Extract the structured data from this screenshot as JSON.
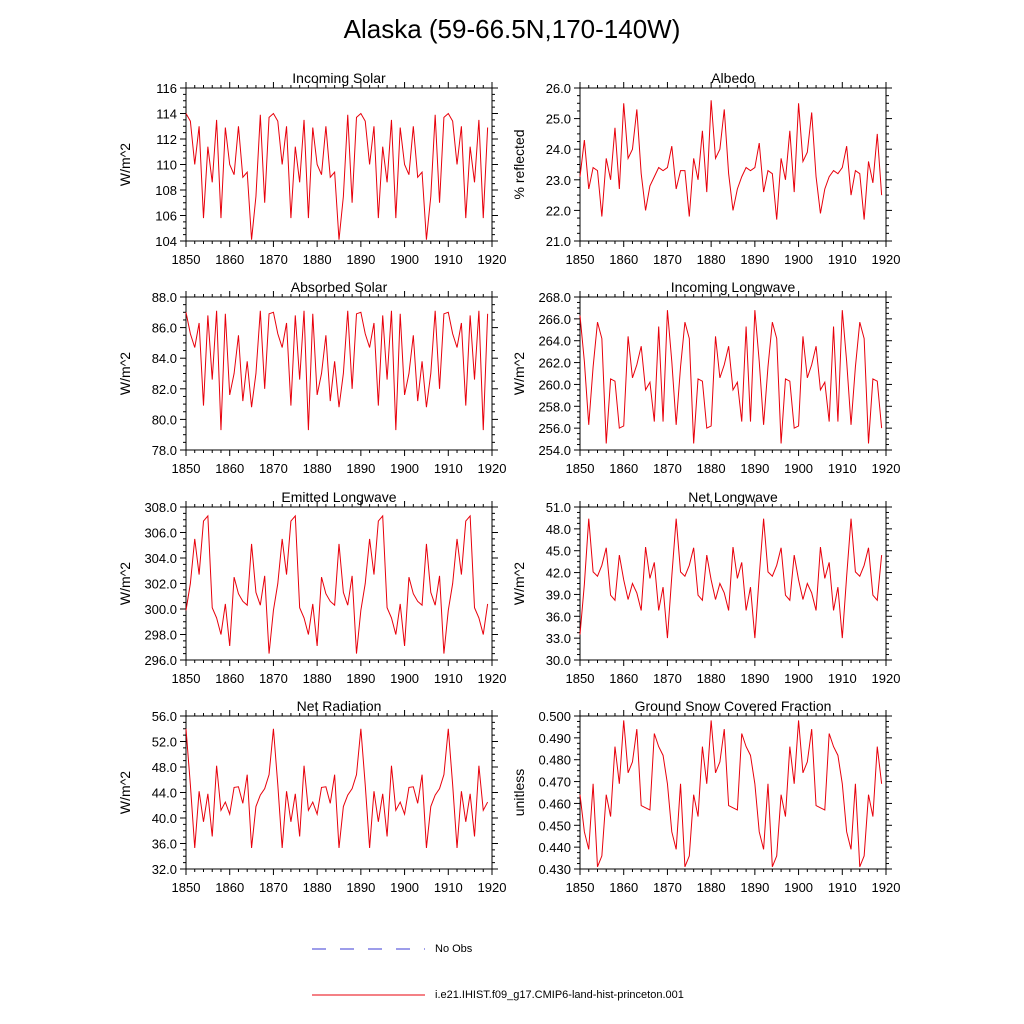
{
  "title": "Alaska (59-66.5N,170-140W)",
  "legend": {
    "obs_label": "No Obs",
    "model_label": "i.e21.IHIST.f09_g17.CMIP6-land-hist-princeton.001",
    "obs_color": "#3b3bd6",
    "model_color": "#e8000b"
  },
  "chart_data": [
    {
      "type": "line",
      "title": "Incoming Solar",
      "ylabel": "W/m^2",
      "xlim": [
        1850,
        1920
      ],
      "ylim": [
        104,
        116
      ],
      "yticks": [
        104,
        106,
        108,
        110,
        112,
        114,
        116
      ],
      "ytick_labels": [
        "104",
        "106",
        "108",
        "110",
        "112",
        "114",
        "116"
      ],
      "xticks": [
        1850,
        1860,
        1870,
        1880,
        1890,
        1900,
        1910,
        1920
      ],
      "xtick_labels": [
        "1850",
        "1860",
        "1870",
        "1880",
        "1890",
        "1900",
        "1910",
        "1920"
      ],
      "series": [
        {
          "x_start": 1850,
          "values": [
            114.0,
            113.4,
            110.0,
            113.0,
            105.8,
            111.4,
            108.6,
            113.5,
            105.8,
            112.9,
            110.0,
            109.2,
            113.0,
            109.0,
            109.4,
            104.1,
            107.5,
            113.9,
            107.0,
            113.7,
            114.0,
            113.4,
            110.0,
            113.0,
            105.8,
            111.4,
            108.6,
            113.5,
            105.8,
            112.9,
            110.0,
            109.2,
            113.0,
            109.0,
            109.4,
            104.1,
            107.5,
            113.9,
            107.0,
            113.7,
            114.0,
            113.4,
            110.0,
            113.0,
            105.8,
            111.4,
            108.6,
            113.5,
            105.8,
            112.9,
            110.0,
            109.2,
            113.0,
            109.0,
            109.4,
            104.1,
            107.5,
            113.9,
            107.0,
            113.7,
            114.0,
            113.4,
            110.0,
            113.0,
            105.8,
            111.4,
            108.6,
            113.5,
            105.8,
            112.9
          ]
        }
      ]
    },
    {
      "type": "line",
      "title": "Albedo",
      "ylabel": "% reflected",
      "xlim": [
        1850,
        1920
      ],
      "ylim": [
        21.0,
        26.0
      ],
      "yticks": [
        21,
        22,
        23,
        24,
        25,
        26
      ],
      "ytick_labels": [
        "21.0",
        "22.0",
        "23.0",
        "24.0",
        "25.0",
        "26.0"
      ],
      "xticks": [
        1850,
        1860,
        1870,
        1880,
        1890,
        1900,
        1910,
        1920
      ],
      "xtick_labels": [
        "1850",
        "1860",
        "1870",
        "1880",
        "1890",
        "1900",
        "1910",
        "1920"
      ],
      "series": [
        {
          "x_start": 1850,
          "values": [
            23.1,
            24.3,
            22.7,
            23.4,
            23.3,
            21.8,
            23.7,
            23.0,
            24.7,
            22.7,
            25.5,
            23.7,
            24.0,
            25.3,
            23.2,
            22.0,
            22.8,
            23.1,
            23.4,
            23.3,
            23.4,
            24.1,
            22.7,
            23.3,
            23.3,
            21.8,
            23.7,
            23.0,
            24.6,
            22.6,
            25.6,
            23.7,
            24.0,
            25.3,
            23.2,
            22.0,
            22.7,
            23.1,
            23.4,
            23.3,
            23.4,
            24.2,
            22.6,
            23.3,
            23.2,
            21.7,
            23.7,
            23.0,
            24.6,
            22.6,
            25.5,
            23.6,
            23.9,
            25.2,
            23.1,
            21.9,
            22.7,
            23.1,
            23.3,
            23.2,
            23.4,
            24.1,
            22.5,
            23.3,
            23.2,
            21.7,
            23.6,
            22.9,
            24.5,
            22.5
          ]
        }
      ]
    },
    {
      "type": "line",
      "title": "Absorbed Solar",
      "ylabel": "W/m^2",
      "xlim": [
        1850,
        1920
      ],
      "ylim": [
        78.0,
        88.0
      ],
      "yticks": [
        78,
        80,
        82,
        84,
        86,
        88
      ],
      "ytick_labels": [
        "78.0",
        "80.0",
        "82.0",
        "84.0",
        "86.0",
        "88.0"
      ],
      "xticks": [
        1850,
        1860,
        1870,
        1880,
        1890,
        1900,
        1910,
        1920
      ],
      "xtick_labels": [
        "1850",
        "1860",
        "1870",
        "1880",
        "1890",
        "1900",
        "1910",
        "1920"
      ],
      "series": [
        {
          "x_start": 1850,
          "values": [
            87.0,
            85.6,
            84.7,
            86.3,
            80.9,
            86.8,
            82.6,
            87.1,
            79.3,
            86.9,
            81.6,
            83.0,
            85.5,
            81.2,
            83.8,
            80.8,
            83.0,
            87.1,
            82.0,
            86.9,
            87.0,
            85.6,
            84.7,
            86.3,
            80.9,
            86.8,
            82.6,
            87.1,
            79.3,
            86.9,
            81.6,
            83.0,
            85.5,
            81.2,
            83.8,
            80.8,
            83.0,
            87.1,
            82.0,
            86.9,
            87.0,
            85.6,
            84.7,
            86.3,
            80.9,
            86.8,
            82.6,
            87.1,
            79.3,
            86.9,
            81.6,
            83.0,
            85.5,
            81.2,
            83.8,
            80.8,
            83.0,
            87.1,
            82.0,
            86.9,
            87.0,
            85.6,
            84.7,
            86.3,
            80.9,
            86.8,
            82.6,
            87.1,
            79.3,
            86.9
          ]
        }
      ]
    },
    {
      "type": "line",
      "title": "Incoming Longwave",
      "ylabel": "W/m^2",
      "xlim": [
        1850,
        1920
      ],
      "ylim": [
        254.0,
        268.0
      ],
      "yticks": [
        254,
        256,
        258,
        260,
        262,
        264,
        266,
        268
      ],
      "ytick_labels": [
        "254.0",
        "256.0",
        "258.0",
        "260.0",
        "262.0",
        "264.0",
        "266.0",
        "268.0"
      ],
      "xticks": [
        1850,
        1860,
        1870,
        1880,
        1890,
        1900,
        1910,
        1920
      ],
      "xtick_labels": [
        "1850",
        "1860",
        "1870",
        "1880",
        "1890",
        "1900",
        "1910",
        "1920"
      ],
      "series": [
        {
          "x_start": 1850,
          "values": [
            266.3,
            262.1,
            256.3,
            261.6,
            265.7,
            264.2,
            254.6,
            260.5,
            260.3,
            256.0,
            256.2,
            264.4,
            260.6,
            261.8,
            263.5,
            259.5,
            260.2,
            256.6,
            265.3,
            256.6,
            266.8,
            262.1,
            256.3,
            261.6,
            265.7,
            264.2,
            254.6,
            260.5,
            260.3,
            256.0,
            256.2,
            264.4,
            260.6,
            261.8,
            263.5,
            259.5,
            260.2,
            256.6,
            265.3,
            256.6,
            266.8,
            262.1,
            256.3,
            261.6,
            265.7,
            264.2,
            254.6,
            260.5,
            260.3,
            256.0,
            256.2,
            264.4,
            260.6,
            261.8,
            263.5,
            259.5,
            260.2,
            256.6,
            265.3,
            256.6,
            266.8,
            262.1,
            256.3,
            261.6,
            265.7,
            264.2,
            254.6,
            260.5,
            260.3,
            256.0
          ]
        }
      ]
    },
    {
      "type": "line",
      "title": "Emitted Longwave",
      "ylabel": "W/m^2",
      "xlim": [
        1850,
        1920
      ],
      "ylim": [
        296.0,
        308.0
      ],
      "yticks": [
        296,
        298,
        300,
        302,
        304,
        306,
        308
      ],
      "ytick_labels": [
        "296.0",
        "298.0",
        "300.0",
        "302.0",
        "304.0",
        "306.0",
        "308.0"
      ],
      "xticks": [
        1850,
        1860,
        1870,
        1880,
        1890,
        1900,
        1910,
        1920
      ],
      "xtick_labels": [
        "1850",
        "1860",
        "1870",
        "1880",
        "1890",
        "1900",
        "1910",
        "1920"
      ],
      "series": [
        {
          "x_start": 1850,
          "values": [
            299.9,
            302.0,
            305.5,
            302.7,
            306.9,
            307.3,
            300.1,
            299.3,
            298.0,
            300.4,
            297.1,
            302.5,
            301.2,
            300.6,
            300.3,
            305.1,
            301.3,
            300.3,
            302.6,
            296.5,
            299.9,
            302.0,
            305.5,
            302.7,
            306.9,
            307.3,
            300.1,
            299.3,
            298.0,
            300.4,
            297.1,
            302.5,
            301.2,
            300.6,
            300.3,
            305.1,
            301.3,
            300.3,
            302.6,
            296.5,
            299.9,
            302.0,
            305.5,
            302.7,
            306.9,
            307.3,
            300.1,
            299.3,
            298.0,
            300.4,
            297.1,
            302.5,
            301.2,
            300.6,
            300.3,
            305.1,
            301.3,
            300.3,
            302.6,
            296.5,
            299.9,
            302.0,
            305.5,
            302.7,
            306.9,
            307.3,
            300.1,
            299.3,
            298.0,
            300.4
          ]
        }
      ]
    },
    {
      "type": "line",
      "title": "Net Longwave",
      "ylabel": "W/m^2",
      "xlim": [
        1850,
        1920
      ],
      "ylim": [
        30.0,
        51.0
      ],
      "yticks": [
        30,
        33,
        36,
        39,
        42,
        45,
        48,
        51
      ],
      "ytick_labels": [
        "30.0",
        "33.0",
        "36.0",
        "39.0",
        "42.0",
        "45.0",
        "48.0",
        "51.0"
      ],
      "xticks": [
        1850,
        1860,
        1870,
        1880,
        1890,
        1900,
        1910,
        1920
      ],
      "xtick_labels": [
        "1850",
        "1860",
        "1870",
        "1880",
        "1890",
        "1900",
        "1910",
        "1920"
      ],
      "series": [
        {
          "x_start": 1850,
          "values": [
            33.5,
            40.4,
            49.4,
            42.1,
            41.5,
            43.0,
            45.4,
            38.9,
            38.2,
            44.4,
            41.0,
            38.3,
            40.5,
            39.2,
            36.8,
            45.5,
            41.2,
            43.4,
            36.8,
            40.0,
            33.0,
            41.5,
            49.4,
            42.1,
            41.5,
            43.0,
            45.4,
            38.9,
            38.2,
            44.4,
            41.0,
            38.3,
            40.5,
            39.2,
            36.8,
            45.5,
            41.2,
            43.4,
            36.8,
            40.0,
            33.0,
            41.5,
            49.4,
            42.1,
            41.5,
            43.0,
            45.4,
            38.9,
            38.2,
            44.4,
            41.0,
            38.3,
            40.5,
            39.2,
            36.8,
            45.5,
            41.2,
            43.4,
            36.8,
            40.0,
            33.0,
            41.5,
            49.4,
            42.1,
            41.5,
            43.0,
            45.4,
            38.9,
            38.2,
            44.4
          ]
        }
      ]
    },
    {
      "type": "line",
      "title": "Net Radiation",
      "ylabel": "W/m^2",
      "xlim": [
        1850,
        1920
      ],
      "ylim": [
        32.0,
        56.0
      ],
      "yticks": [
        32,
        36,
        40,
        44,
        48,
        52,
        56
      ],
      "ytick_labels": [
        "32.0",
        "36.0",
        "40.0",
        "44.0",
        "48.0",
        "52.0",
        "56.0"
      ],
      "xticks": [
        1850,
        1860,
        1870,
        1880,
        1890,
        1900,
        1910,
        1920
      ],
      "xtick_labels": [
        "1850",
        "1860",
        "1870",
        "1880",
        "1890",
        "1900",
        "1910",
        "1920"
      ],
      "series": [
        {
          "x_start": 1850,
          "values": [
            54.0,
            45.2,
            35.3,
            44.2,
            39.4,
            43.8,
            37.1,
            48.2,
            41.2,
            42.5,
            40.6,
            44.8,
            44.9,
            42.3,
            46.8,
            35.3,
            41.8,
            43.6,
            44.6,
            46.8,
            54.0,
            45.2,
            35.3,
            44.2,
            39.4,
            43.8,
            37.1,
            48.2,
            41.2,
            42.5,
            40.6,
            44.8,
            44.9,
            42.3,
            46.8,
            35.3,
            41.8,
            43.6,
            44.6,
            46.8,
            54.0,
            45.2,
            35.3,
            44.2,
            39.4,
            43.8,
            37.1,
            48.2,
            41.2,
            42.5,
            40.6,
            44.8,
            44.9,
            42.3,
            46.8,
            35.3,
            41.8,
            43.6,
            44.6,
            46.8,
            54.0,
            45.2,
            35.3,
            44.2,
            39.4,
            43.8,
            37.1,
            48.2,
            41.2,
            42.5
          ]
        }
      ]
    },
    {
      "type": "line",
      "title": "Ground Snow Covered Fraction",
      "ylabel": "unitless",
      "xlim": [
        1850,
        1920
      ],
      "ylim": [
        0.43,
        0.5
      ],
      "yticks": [
        0.43,
        0.44,
        0.45,
        0.46,
        0.47,
        0.48,
        0.49,
        0.5
      ],
      "ytick_labels": [
        "0.430",
        "0.440",
        "0.450",
        "0.460",
        "0.470",
        "0.480",
        "0.490",
        "0.500"
      ],
      "xticks": [
        1850,
        1860,
        1870,
        1880,
        1890,
        1900,
        1910,
        1920
      ],
      "xtick_labels": [
        "1850",
        "1860",
        "1870",
        "1880",
        "1890",
        "1900",
        "1910",
        "1920"
      ],
      "series": [
        {
          "x_start": 1850,
          "values": [
            0.464,
            0.447,
            0.439,
            0.469,
            0.431,
            0.436,
            0.464,
            0.454,
            0.486,
            0.469,
            0.498,
            0.474,
            0.479,
            0.494,
            0.459,
            0.458,
            0.457,
            0.492,
            0.486,
            0.482,
            0.469,
            0.447,
            0.439,
            0.469,
            0.431,
            0.436,
            0.464,
            0.454,
            0.486,
            0.469,
            0.498,
            0.474,
            0.479,
            0.494,
            0.459,
            0.458,
            0.457,
            0.492,
            0.486,
            0.482,
            0.469,
            0.447,
            0.439,
            0.469,
            0.431,
            0.436,
            0.464,
            0.454,
            0.486,
            0.469,
            0.498,
            0.474,
            0.479,
            0.494,
            0.459,
            0.458,
            0.457,
            0.492,
            0.486,
            0.482,
            0.469,
            0.447,
            0.439,
            0.469,
            0.431,
            0.436,
            0.464,
            0.454,
            0.486,
            0.469
          ]
        }
      ]
    }
  ]
}
